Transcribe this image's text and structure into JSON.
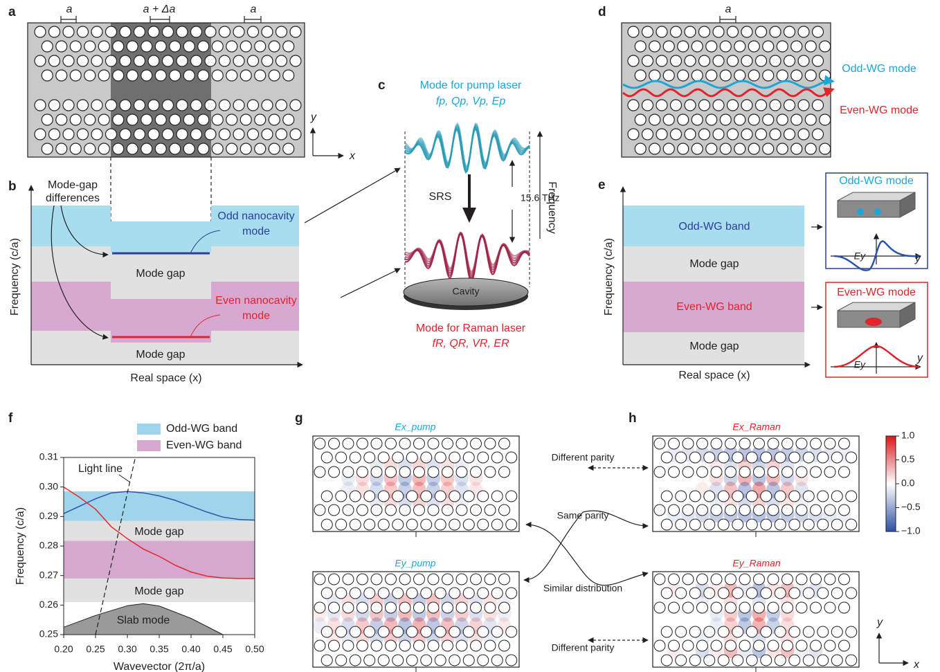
{
  "panels": {
    "a": {
      "label": "a",
      "spacing_left": "a",
      "spacing_middle": "a + Δa",
      "spacing_right": "a",
      "axis_y": "y",
      "axis_x": "x"
    },
    "b": {
      "label": "b",
      "annotation_line1": "Mode-gap",
      "annotation_line2": "differences",
      "y_label": "Frequency (c/a)",
      "odd_line1": "Odd nanocavity",
      "odd_line2": "mode",
      "even_line1": "Even nanocavity",
      "even_line2": "mode",
      "gap_upper": "Mode gap",
      "gap_lower": "Mode gap",
      "x_label": "Real space (x)"
    },
    "c": {
      "label": "c",
      "pump_title": "Mode for pump laser",
      "pump_params": "fp, Qp, Vp, Ep",
      "srs": "SRS",
      "shift": "15.6 THz",
      "frequency": "Frequency",
      "cavity": "Cavity",
      "raman_title": "Mode for Raman laser",
      "raman_params": "fR, QR, VR, ER"
    },
    "d": {
      "label": "d",
      "spacing": "a",
      "odd_mode": "Odd-WG mode",
      "even_mode": "Even-WG mode"
    },
    "e": {
      "label": "e",
      "y_label": "Frequency (c/a)",
      "odd_band": "Odd-WG band",
      "gap_upper": "Mode gap",
      "even_band": "Even-WG band",
      "gap_lower": "Mode gap",
      "x_label": "Real space (x)",
      "odd_box_title": "Odd-WG mode",
      "odd_field": "Ey",
      "odd_axis": "y",
      "even_box_title": "Even-WG mode",
      "even_field": "Ey",
      "even_axis": "y"
    },
    "f": {
      "label": "f"
    },
    "g": {
      "label": "g",
      "top_title": "Ex_pump",
      "bottom_title": "Ey_pump"
    },
    "h": {
      "label": "h",
      "top_title": "Ex_Raman",
      "bottom_title": "Ey_Raman",
      "axis_y": "y",
      "axis_x": "x",
      "colorbar": {
        "lim": [
          -1,
          1
        ],
        "ticks": [
          {
            "value": 1,
            "label": "1.0"
          },
          0.5,
          {
            "value": 0,
            "label": "0.0"
          },
          {
            "value": -0.5,
            "label": "−0.5"
          },
          {
            "value": -1,
            "label": "−1.0"
          }
        ]
      }
    },
    "middle": {
      "top_parity": "Different parity",
      "same_parity": "Same parity",
      "similar": "Similar distribution",
      "bottom_parity": "Different parity"
    }
  },
  "chart_data": {
    "type": "line",
    "x_label": "Wavevector (2π/a)",
    "y_label": "Frequency (c/a)",
    "xlim": [
      0.2,
      0.5
    ],
    "ylim": [
      0.25,
      0.31
    ],
    "xticks": [
      {
        "value": 0.2,
        "label": "0.20"
      },
      0.25,
      {
        "value": 0.3,
        "label": "0.30"
      },
      0.35,
      {
        "value": 0.4,
        "label": "0.40"
      },
      0.45,
      {
        "value": 0.5,
        "label": "0.50"
      }
    ],
    "yticks": [
      0.25,
      0.26,
      0.27,
      0.28,
      0.29,
      {
        "value": 0.3,
        "label": "0.30"
      },
      0.31
    ],
    "bands": [
      {
        "name": "Odd-WG band",
        "color": "#9fd5ec",
        "range": [
          0.2885,
          0.2985
        ]
      },
      {
        "name": "Even-WG band",
        "color": "#d5a8cf",
        "range": [
          0.269,
          0.2818
        ]
      }
    ],
    "gaps": [
      {
        "label": "Mode gap",
        "range": [
          0.2818,
          0.2885
        ]
      },
      {
        "label": "Mode gap",
        "range": [
          0.261,
          0.269
        ]
      }
    ],
    "x": [
      0.2,
      0.225,
      0.25,
      0.275,
      0.3,
      0.325,
      0.35,
      0.375,
      0.4,
      0.425,
      0.45,
      0.475,
      0.5
    ],
    "series": [
      {
        "color": "#2a55a8",
        "values": [
          0.291,
          0.2935,
          0.296,
          0.298,
          0.2985,
          0.298,
          0.297,
          0.2955,
          0.2935,
          0.2915,
          0.2898,
          0.289,
          0.2888
        ]
      },
      {
        "color": "#e8262b",
        "values": [
          0.3,
          0.2965,
          0.2925,
          0.2865,
          0.2825,
          0.279,
          0.2765,
          0.2735,
          0.2712,
          0.2698,
          0.2692,
          0.269,
          0.269
        ]
      }
    ],
    "light_line": {
      "label": "Light line",
      "x": [
        0.25,
        0.3125
      ],
      "values": [
        0.25,
        0.31
      ]
    },
    "slab_mode": {
      "label": "Slab mode",
      "color": "#9a9a9a",
      "x": [
        0.2,
        0.25,
        0.3,
        0.325,
        0.35,
        0.4,
        0.45
      ],
      "values": [
        0.2525,
        0.2565,
        0.2598,
        0.2605,
        0.2597,
        0.2555,
        0.25
      ]
    }
  }
}
